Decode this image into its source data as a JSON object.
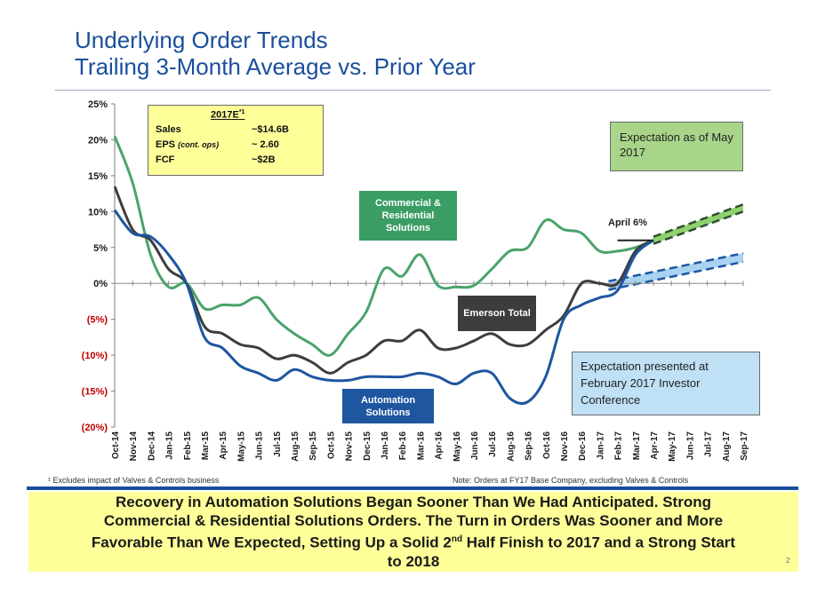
{
  "header": {
    "title_line1": "Underlying Order Trends",
    "title_line2": "Trailing 3-Month Average vs. Prior Year"
  },
  "guidance_box": {
    "header": "2017E",
    "header_sup": "*1",
    "rows": [
      {
        "label": "Sales",
        "qualifier": "",
        "value": "~$14.6B"
      },
      {
        "label": "EPS",
        "qualifier": "(cont. ops)",
        "value": "~ 2.60"
      },
      {
        "label": "FCF",
        "qualifier": "",
        "value": "~$2B"
      }
    ]
  },
  "expectation_may": "Expectation as of May 2017",
  "expectation_feb": "Expectation presented at February 2017 Investor Conference",
  "april_label": "April 6%",
  "series_labels": {
    "commercial": "Commercial & Residential Solutions",
    "emerson": "Emerson Total",
    "automation": "Automation Solutions"
  },
  "colors": {
    "commercial": "#4aa36c",
    "emerson": "#3d3d3d",
    "automation": "#1e56a0",
    "may_band": "#8fd070",
    "feb_band": "#a9d3f0",
    "title": "#1a4f9c"
  },
  "chart_data": {
    "type": "line",
    "title": "Underlying Order Trends Trailing 3-Month Average vs. Prior Year",
    "xlabel": "",
    "ylabel": "",
    "ylim": [
      -20,
      25
    ],
    "yticks": [
      25,
      20,
      15,
      10,
      5,
      0,
      -5,
      -10,
      -15,
      -20
    ],
    "ytick_labels": [
      "25%",
      "20%",
      "15%",
      "10%",
      "5%",
      "0%",
      "(5%)",
      "(10%)",
      "(15%)",
      "(20%)"
    ],
    "categories": [
      "Oct-14",
      "Nov-14",
      "Dec-14",
      "Jan-15",
      "Feb-15",
      "Mar-15",
      "Apr-15",
      "May-15",
      "Jun-15",
      "Jul-15",
      "Aug-15",
      "Sep-15",
      "Oct-15",
      "Nov-15",
      "Dec-15",
      "Jan-16",
      "Feb-16",
      "Mar-16",
      "Apr-16",
      "May-16",
      "Jun-16",
      "Jul-16",
      "Aug-16",
      "Sep-16",
      "Oct-16",
      "Nov-16",
      "Dec-16",
      "Jan-17",
      "Feb-17",
      "Mar-17",
      "Apr-17",
      "May-17",
      "Jun-17",
      "Jul-17",
      "Aug-17",
      "Sep-17"
    ],
    "series": [
      {
        "name": "Commercial & Residential Solutions",
        "values": [
          20.5,
          14,
          4,
          -0.5,
          0,
          -3.5,
          -3,
          -3,
          -2,
          -5,
          -7,
          -8.5,
          -10,
          -7,
          -4,
          2,
          1,
          4,
          -0.3,
          -0.5,
          -0.3,
          2,
          4.5,
          5,
          8.8,
          7.5,
          7,
          4.5,
          4.5,
          5,
          6,
          null,
          null,
          null,
          null,
          null
        ]
      },
      {
        "name": "Emerson Total",
        "values": [
          13.5,
          7.5,
          6,
          2,
          0,
          -6,
          -7,
          -8.5,
          -9,
          -10.5,
          -10,
          -11,
          -12.5,
          -11,
          -10,
          -8,
          -8,
          -6.5,
          -9,
          -9,
          -8,
          -7,
          -8.5,
          -8.5,
          -6.5,
          -4.5,
          0,
          0,
          0,
          4.5,
          6,
          null,
          null,
          null,
          null,
          null
        ]
      },
      {
        "name": "Automation Solutions",
        "values": [
          10.2,
          7,
          6.5,
          4,
          0,
          -7.5,
          -9,
          -11.5,
          -12.5,
          -13.5,
          -12,
          -13,
          -13.5,
          -13.5,
          -13,
          -13,
          -13,
          -12.5,
          -13,
          -14,
          -12.5,
          -12.5,
          -16,
          -16.5,
          -13,
          -5,
          -3,
          -2,
          -1,
          4,
          6,
          null,
          null,
          null,
          null,
          null
        ]
      }
    ],
    "projections": [
      {
        "name": "Expectation as of May 2017",
        "start": [
          30,
          6
        ],
        "end_top": [
          35,
          11
        ],
        "end_bottom": [
          35,
          10
        ],
        "start_width": 1.0
      },
      {
        "name": "Expectation presented at February 2017 Investor Conference",
        "start": [
          27.5,
          -0.3
        ],
        "end_top": [
          35,
          4.2
        ],
        "end_bottom": [
          35,
          3
        ],
        "start_width": 1.2
      }
    ],
    "april_marker": {
      "x_from": 28,
      "x_to": 30,
      "y": 6
    },
    "grid": false,
    "legend": "none"
  },
  "footnotes": {
    "left": "¹ Excludes impact of Valves & Controls business",
    "right": "Note: Orders at FY17 Base Company, excluding Valves & Controls"
  },
  "banner": {
    "line1": "Recovery in Automation Solutions Began Sooner Than We Had Anticipated.  Strong",
    "line2": "Commercial & Residential Solutions Orders.  The Turn in Orders Was Sooner and More",
    "line3_pre": "Favorable Than We Expected, Setting Up a Solid 2",
    "line3_sup": "nd",
    "line3_post": " Half Finish to 2017 and a Strong Start",
    "line4": "to 2018"
  },
  "page_number": "2"
}
